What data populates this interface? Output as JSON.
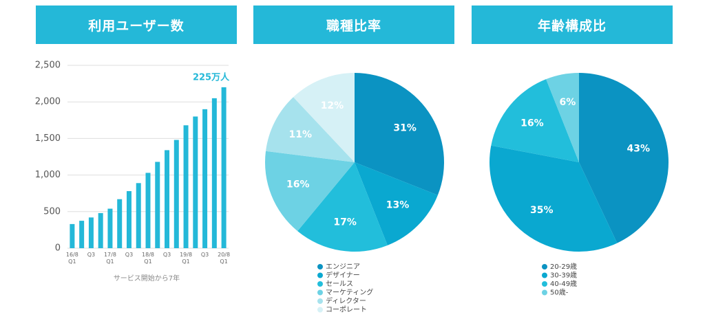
{
  "chart_data": [
    {
      "type": "bar",
      "title": "利用ユーザー数",
      "categories": [
        "16/8\nQ1",
        null,
        "Q3",
        null,
        "17/8\nQ1",
        null,
        "Q3",
        null,
        "18/8\nQ1",
        null,
        "Q3",
        null,
        "19/8\nQ1",
        null,
        "Q3",
        null,
        "20/8\nQ1"
      ],
      "values": [
        330,
        375,
        420,
        480,
        540,
        670,
        780,
        890,
        1030,
        1180,
        1340,
        1480,
        1680,
        1800,
        1900,
        2050,
        2200
      ],
      "color": "#24b8d8",
      "ylim": [
        0,
        2500
      ],
      "yticks": [
        0,
        500,
        {
          "value": 1000,
          "label": "1,000"
        },
        {
          "value": 1500,
          "label": "1,500"
        },
        {
          "value": 2000,
          "label": "2,000"
        },
        {
          "value": 2500,
          "label": "2,500"
        }
      ],
      "grid": true,
      "annotation": "225万人",
      "x_label": "サービス開始から7年"
    },
    {
      "type": "pie",
      "title": "職種比率",
      "categories": [
        "エンジニア",
        "デザイナー",
        "セールス",
        "マーケティング",
        "ディレクター",
        "コーポレート"
      ],
      "values": [
        31,
        13,
        17,
        16,
        11,
        12
      ],
      "value_labels": [
        "31%",
        "13%",
        "17%",
        "16%",
        "11%",
        "12%"
      ],
      "colors": [
        "#0b93c2",
        "#0aa8d0",
        "#22bedb",
        "#6dd2e4",
        "#a6e2ed",
        "#d6f1f6"
      ]
    },
    {
      "type": "pie",
      "title": "年齢構成比",
      "categories": [
        "20-29歳",
        "30-39歳",
        "40-49歳",
        "50歳-"
      ],
      "values": [
        43,
        35,
        16,
        6
      ],
      "value_labels": [
        "43%",
        "35%",
        "16%",
        "6%"
      ],
      "colors": [
        "#0b93c2",
        "#0aa8d0",
        "#22bedb",
        "#6dd2e4"
      ]
    }
  ]
}
